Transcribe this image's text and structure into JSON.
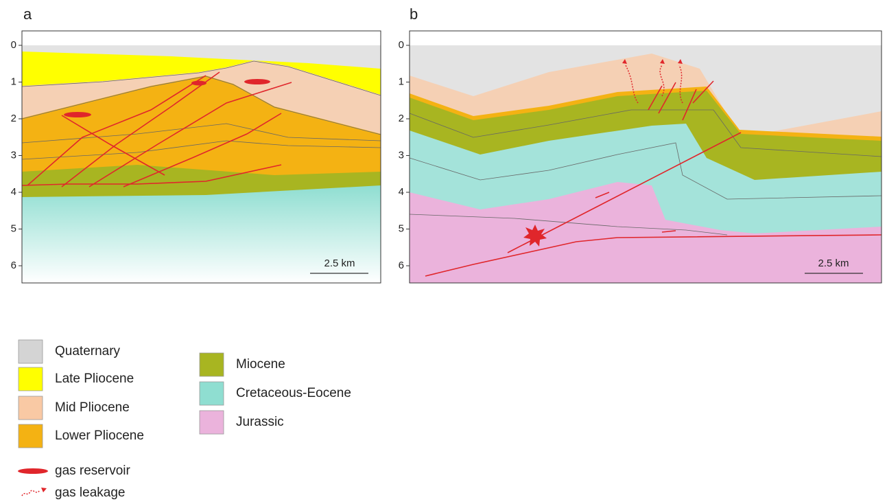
{
  "panels": [
    {
      "label": "a",
      "yticks": [
        0,
        1,
        2,
        3,
        4,
        5,
        6
      ],
      "scale_bar": "2.5 km"
    },
    {
      "label": "b",
      "yticks": [
        0,
        1,
        2,
        3,
        4,
        5,
        6
      ],
      "scale_bar": "2.5 km"
    }
  ],
  "legend": {
    "units": [
      "Quaternary",
      "Late Pliocene",
      "Mid Pliocene",
      "Lower Pliocene",
      "Miocene",
      "Cretaceous-Eocene",
      "Jurassic"
    ],
    "symbols": [
      "gas reservoir",
      "gas leakage"
    ]
  }
}
